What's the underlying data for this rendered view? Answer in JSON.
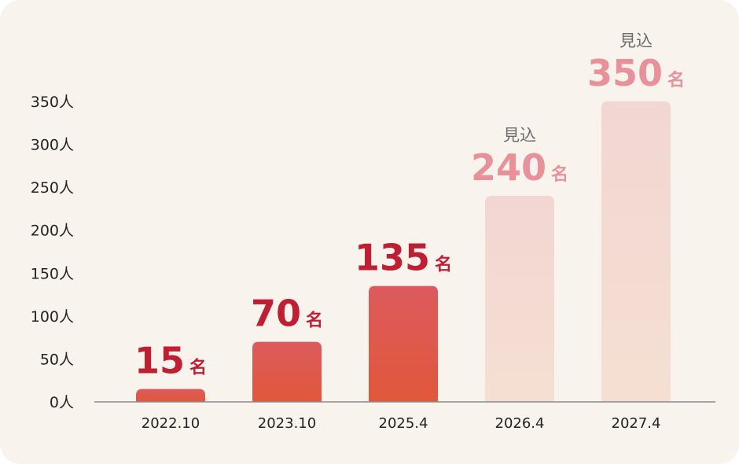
{
  "chart_data": {
    "type": "bar",
    "categories": [
      "2022.10",
      "2023.10",
      "2025.4",
      "2026.4",
      "2027.4"
    ],
    "values": [
      15,
      70,
      135,
      240,
      350
    ],
    "projected": [
      false,
      false,
      false,
      true,
      true
    ],
    "value_labels": [
      "15",
      "70",
      "135",
      "240",
      "350"
    ],
    "value_unit": "名",
    "projection_note": "見込",
    "y_ticks": [
      0,
      50,
      100,
      150,
      200,
      250,
      300,
      350
    ],
    "y_tick_labels": [
      "0人",
      "50人",
      "100人",
      "150人",
      "200人",
      "250人",
      "300人",
      "350人"
    ],
    "ylim": [
      0,
      350
    ],
    "title": "",
    "xlabel": "",
    "ylabel": ""
  },
  "colors": {
    "actual_top": "#dc5a5e",
    "actual_bottom": "#e2583a",
    "actual_label": "#bf1f33",
    "projected_top": "#f2d6d2",
    "projected_bottom": "#f5dfd2",
    "projected_label": "#e8919a",
    "axis": "#8a8a8a"
  }
}
